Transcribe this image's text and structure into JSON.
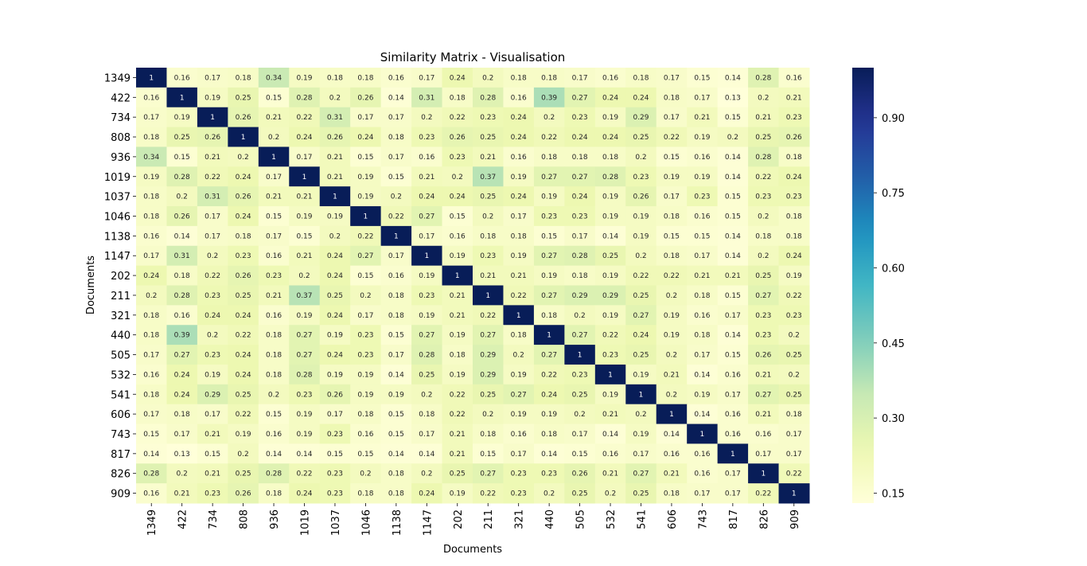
{
  "chart_data": {
    "type": "heatmap",
    "title": "Similarity Matrix - Visualisation",
    "xlabel": "Documents",
    "ylabel": "Documents",
    "labels": [
      "1349",
      "422",
      "734",
      "808",
      "936",
      "1019",
      "1037",
      "1046",
      "1138",
      "1147",
      "202",
      "211",
      "321",
      "440",
      "505",
      "532",
      "541",
      "606",
      "743",
      "817",
      "826",
      "909"
    ],
    "matrix": [
      [
        1,
        0.16,
        0.17,
        0.18,
        0.34,
        0.19,
        0.18,
        0.18,
        0.16,
        0.17,
        0.24,
        0.2,
        0.18,
        0.18,
        0.17,
        0.16,
        0.18,
        0.17,
        0.15,
        0.14,
        0.28,
        0.16
      ],
      [
        0.16,
        1,
        0.19,
        0.25,
        0.15,
        0.28,
        0.2,
        0.26,
        0.14,
        0.31,
        0.18,
        0.28,
        0.16,
        0.39,
        0.27,
        0.24,
        0.24,
        0.18,
        0.17,
        0.13,
        0.2,
        0.21
      ],
      [
        0.17,
        0.19,
        1,
        0.26,
        0.21,
        0.22,
        0.31,
        0.17,
        0.17,
        0.2,
        0.22,
        0.23,
        0.24,
        0.2,
        0.23,
        0.19,
        0.29,
        0.17,
        0.21,
        0.15,
        0.21,
        0.23
      ],
      [
        0.18,
        0.25,
        0.26,
        1,
        0.2,
        0.24,
        0.26,
        0.24,
        0.18,
        0.23,
        0.26,
        0.25,
        0.24,
        0.22,
        0.24,
        0.24,
        0.25,
        0.22,
        0.19,
        0.2,
        0.25,
        0.26
      ],
      [
        0.34,
        0.15,
        0.21,
        0.2,
        1,
        0.17,
        0.21,
        0.15,
        0.17,
        0.16,
        0.23,
        0.21,
        0.16,
        0.18,
        0.18,
        0.18,
        0.2,
        0.15,
        0.16,
        0.14,
        0.28,
        0.18
      ],
      [
        0.19,
        0.28,
        0.22,
        0.24,
        0.17,
        1,
        0.21,
        0.19,
        0.15,
        0.21,
        0.2,
        0.37,
        0.19,
        0.27,
        0.27,
        0.28,
        0.23,
        0.19,
        0.19,
        0.14,
        0.22,
        0.24
      ],
      [
        0.18,
        0.2,
        0.31,
        0.26,
        0.21,
        0.21,
        1,
        0.19,
        0.2,
        0.24,
        0.24,
        0.25,
        0.24,
        0.19,
        0.24,
        0.19,
        0.26,
        0.17,
        0.23,
        0.15,
        0.23,
        0.23
      ],
      [
        0.18,
        0.26,
        0.17,
        0.24,
        0.15,
        0.19,
        0.19,
        1,
        0.22,
        0.27,
        0.15,
        0.2,
        0.17,
        0.23,
        0.23,
        0.19,
        0.19,
        0.18,
        0.16,
        0.15,
        0.2,
        0.18
      ],
      [
        0.16,
        0.14,
        0.17,
        0.18,
        0.17,
        0.15,
        0.2,
        0.22,
        1,
        0.17,
        0.16,
        0.18,
        0.18,
        0.15,
        0.17,
        0.14,
        0.19,
        0.15,
        0.15,
        0.14,
        0.18,
        0.18
      ],
      [
        0.17,
        0.31,
        0.2,
        0.23,
        0.16,
        0.21,
        0.24,
        0.27,
        0.17,
        1,
        0.19,
        0.23,
        0.19,
        0.27,
        0.28,
        0.25,
        0.2,
        0.18,
        0.17,
        0.14,
        0.2,
        0.24
      ],
      [
        0.24,
        0.18,
        0.22,
        0.26,
        0.23,
        0.2,
        0.24,
        0.15,
        0.16,
        0.19,
        1,
        0.21,
        0.21,
        0.19,
        0.18,
        0.19,
        0.22,
        0.22,
        0.21,
        0.21,
        0.25,
        0.19
      ],
      [
        0.2,
        0.28,
        0.23,
        0.25,
        0.21,
        0.37,
        0.25,
        0.2,
        0.18,
        0.23,
        0.21,
        1,
        0.22,
        0.27,
        0.29,
        0.29,
        0.25,
        0.2,
        0.18,
        0.15,
        0.27,
        0.22
      ],
      [
        0.18,
        0.16,
        0.24,
        0.24,
        0.16,
        0.19,
        0.24,
        0.17,
        0.18,
        0.19,
        0.21,
        0.22,
        1,
        0.18,
        0.2,
        0.19,
        0.27,
        0.19,
        0.16,
        0.17,
        0.23,
        0.23
      ],
      [
        0.18,
        0.39,
        0.2,
        0.22,
        0.18,
        0.27,
        0.19,
        0.23,
        0.15,
        0.27,
        0.19,
        0.27,
        0.18,
        1,
        0.27,
        0.22,
        0.24,
        0.19,
        0.18,
        0.14,
        0.23,
        0.2
      ],
      [
        0.17,
        0.27,
        0.23,
        0.24,
        0.18,
        0.27,
        0.24,
        0.23,
        0.17,
        0.28,
        0.18,
        0.29,
        0.2,
        0.27,
        1,
        0.23,
        0.25,
        0.2,
        0.17,
        0.15,
        0.26,
        0.25
      ],
      [
        0.16,
        0.24,
        0.19,
        0.24,
        0.18,
        0.28,
        0.19,
        0.19,
        0.14,
        0.25,
        0.19,
        0.29,
        0.19,
        0.22,
        0.23,
        1,
        0.19,
        0.21,
        0.14,
        0.16,
        0.21,
        0.2
      ],
      [
        0.18,
        0.24,
        0.29,
        0.25,
        0.2,
        0.23,
        0.26,
        0.19,
        0.19,
        0.2,
        0.22,
        0.25,
        0.27,
        0.24,
        0.25,
        0.19,
        1,
        0.2,
        0.19,
        0.17,
        0.27,
        0.25
      ],
      [
        0.17,
        0.18,
        0.17,
        0.22,
        0.15,
        0.19,
        0.17,
        0.18,
        0.15,
        0.18,
        0.22,
        0.2,
        0.19,
        0.19,
        0.2,
        0.21,
        0.2,
        1,
        0.14,
        0.16,
        0.21,
        0.18
      ],
      [
        0.15,
        0.17,
        0.21,
        0.19,
        0.16,
        0.19,
        0.23,
        0.16,
        0.15,
        0.17,
        0.21,
        0.18,
        0.16,
        0.18,
        0.17,
        0.14,
        0.19,
        0.14,
        1,
        0.16,
        0.16,
        0.17
      ],
      [
        0.14,
        0.13,
        0.15,
        0.2,
        0.14,
        0.14,
        0.15,
        0.15,
        0.14,
        0.14,
        0.21,
        0.15,
        0.17,
        0.14,
        0.15,
        0.16,
        0.17,
        0.16,
        0.16,
        1,
        0.17,
        0.17
      ],
      [
        0.28,
        0.2,
        0.21,
        0.25,
        0.28,
        0.22,
        0.23,
        0.2,
        0.18,
        0.2,
        0.25,
        0.27,
        0.23,
        0.23,
        0.26,
        0.21,
        0.27,
        0.21,
        0.16,
        0.17,
        1,
        0.22
      ],
      [
        0.16,
        0.21,
        0.23,
        0.26,
        0.18,
        0.24,
        0.23,
        0.18,
        0.18,
        0.24,
        0.19,
        0.22,
        0.23,
        0.2,
        0.25,
        0.2,
        0.25,
        0.18,
        0.17,
        0.17,
        0.22,
        1
      ]
    ],
    "colormap": "YlGnBu",
    "colorbar_ticks": [
      "0.15",
      "0.30",
      "0.45",
      "0.60",
      "0.75",
      "0.90"
    ],
    "vmin": 0.13,
    "vmax": 1,
    "annotate": true,
    "grid": false,
    "colorbar_placement": "right"
  }
}
